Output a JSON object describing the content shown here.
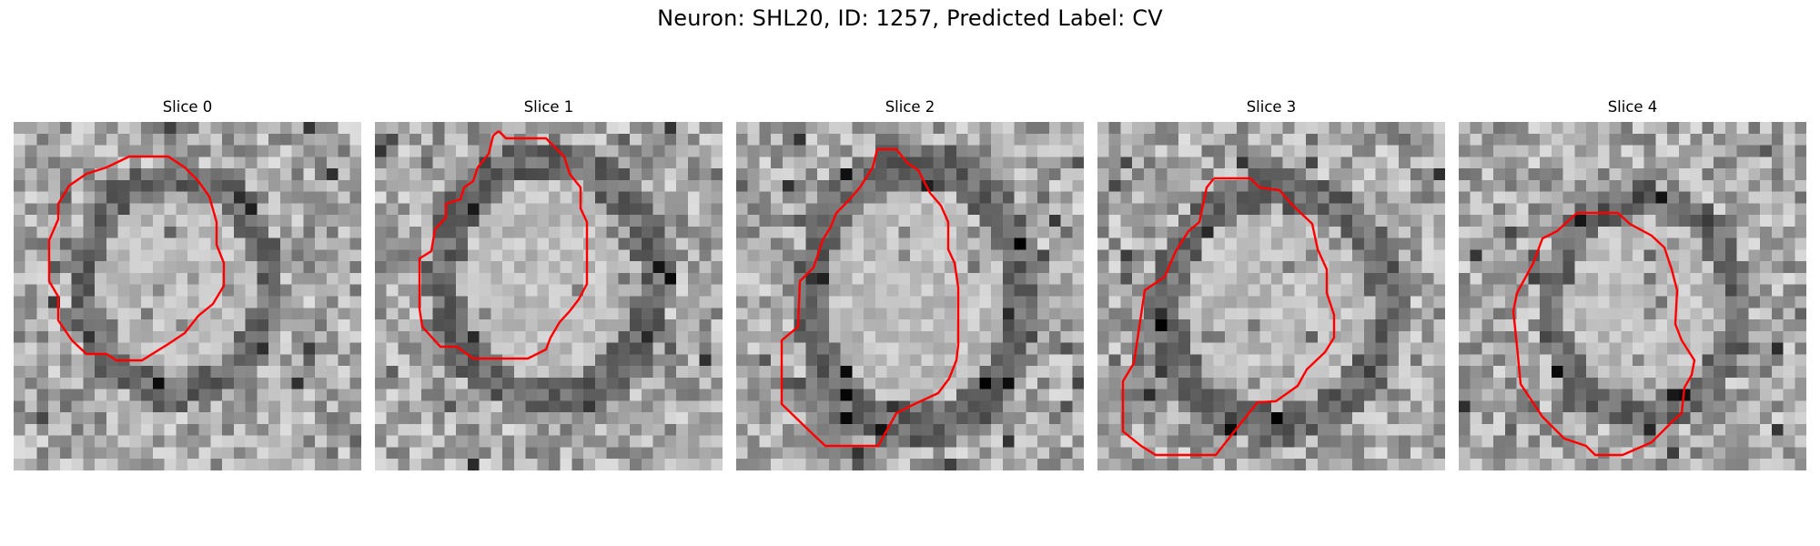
{
  "figure": {
    "title": "Neuron: SHL20, ID: 1257, Predicted Label: CV"
  },
  "colors": {
    "contour": "#ff0000",
    "background": "#ffffff"
  },
  "panels": [
    {
      "title": "Slice 0"
    },
    {
      "title": "Slice 1"
    },
    {
      "title": "Slice 2"
    },
    {
      "title": "Slice 3"
    },
    {
      "title": "Slice 4"
    }
  ]
}
